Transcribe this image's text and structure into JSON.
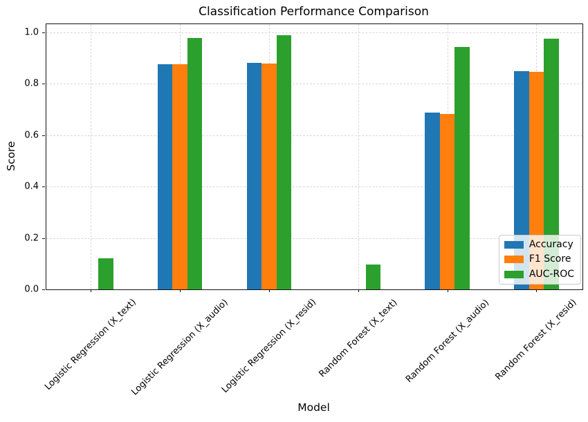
{
  "chart_data": {
    "type": "bar",
    "title": "Classification Performance Comparison",
    "xlabel": "Model",
    "ylabel": "Score",
    "categories": [
      "Logistic Regression (X_text)",
      "Logistic Regression (X_audio)",
      "Logistic Regression (X_resid)",
      "Random Forest (X_text)",
      "Random Forest (X_audio)",
      "Random Forest (X_resid)"
    ],
    "series": [
      {
        "name": "Accuracy",
        "color": "#1f77b4",
        "values": [
          0.0,
          0.875,
          0.881,
          0.0,
          0.688,
          0.85
        ]
      },
      {
        "name": "F1 Score",
        "color": "#ff7f0e",
        "values": [
          0.0,
          0.875,
          0.878,
          0.0,
          0.683,
          0.848
        ]
      },
      {
        "name": "AUC-ROC",
        "color": "#2ca02c",
        "values": [
          0.122,
          0.979,
          0.989,
          0.098,
          0.944,
          0.977
        ]
      }
    ],
    "yticks": [
      0.0,
      0.2,
      0.4,
      0.6,
      0.8,
      1.0
    ],
    "ylim": [
      0,
      1.033
    ],
    "grid": true,
    "grid_style": "dashed",
    "legend_position": "lower right",
    "xtick_rotation": 45
  }
}
